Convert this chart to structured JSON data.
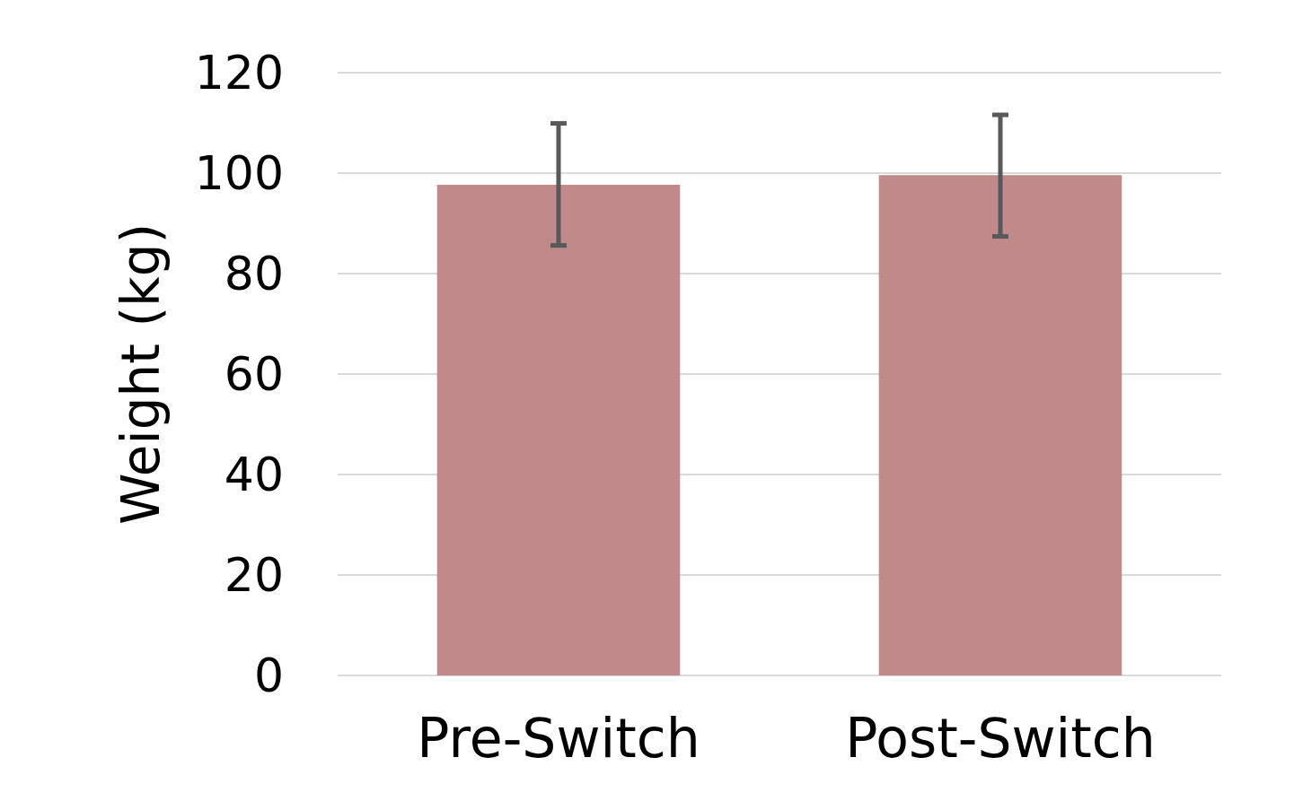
{
  "chart_data": {
    "type": "bar",
    "ylabel": "Weight (kg)",
    "categories": [
      "Pre-Switch",
      "Post-Switch"
    ],
    "values": [
      97.7,
      99.6
    ],
    "errors": [
      [
        85.6,
        109.9
      ],
      [
        87.4,
        111.6
      ]
    ],
    "color": "#c0898a",
    "ylim": [
      0,
      120
    ],
    "yticks": [
      0,
      20,
      40,
      60,
      80,
      100,
      120
    ],
    "grid": "y"
  }
}
